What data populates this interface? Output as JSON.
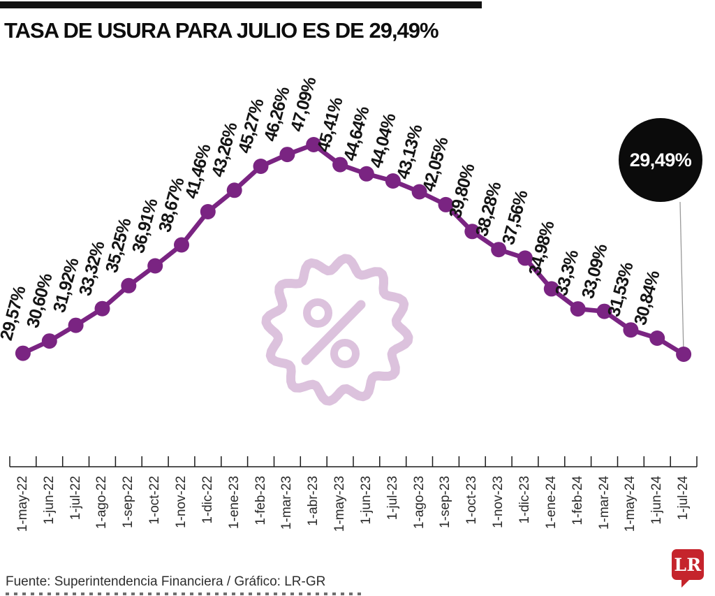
{
  "title": "TASA DE USURA PARA JULIO ES DE 29,49%",
  "callout": {
    "value": "29,49%"
  },
  "footer": {
    "source": "Fuente: Superintendencia Financiera / Gráfico: LR-GR",
    "logo_text": "LR"
  },
  "colors": {
    "series": "#7a2482",
    "callout_bg": "#0b0b0b",
    "watermark": "#dcc2dd",
    "logo_red": "#c5242c",
    "axis": "#1a1a1a",
    "leader_line": "#999999"
  },
  "watermark": {
    "icon": "percent-badge-icon"
  },
  "chart_data": {
    "type": "line",
    "title": "TASA DE USURA PARA JULIO ES DE 29,49%",
    "xlabel": "",
    "ylabel": "",
    "grid": false,
    "legend": "none",
    "ylim": [
      29.49,
      47.09
    ],
    "x": [
      "1-may-22",
      "1-jun-22",
      "1-jul-22",
      "1-ago-22",
      "1-sep-22",
      "1-oct-22",
      "1-nov-22",
      "1-dic-22",
      "1-ene-23",
      "1-feb-23",
      "1-mar-23",
      "1-abr-23",
      "1-may-23",
      "1-jun-23",
      "1-jul-23",
      "1-ago-23",
      "1-sep-23",
      "1-oct-23",
      "1-nov-23",
      "1-dic-23",
      "1-ene-24",
      "1-feb-24",
      "1-mar-24",
      "1-may-24",
      "1-jun-24",
      "1-jul-24"
    ],
    "values": [
      29.57,
      30.6,
      31.92,
      33.32,
      35.25,
      36.91,
      38.67,
      41.46,
      43.26,
      45.27,
      46.26,
      47.09,
      45.41,
      44.64,
      44.04,
      43.13,
      42.05,
      39.8,
      38.28,
      37.56,
      34.98,
      33.3,
      33.09,
      31.53,
      30.84,
      29.49
    ],
    "point_labels": [
      "29,57%",
      "30,60%",
      "31,92%",
      "33,32%",
      "35,25%",
      "36,91%",
      "38,67%",
      "41,46%",
      "43,26%",
      "45,27%",
      "46,26%",
      "47,09%",
      "45,41%",
      "44,64%",
      "44,04%",
      "43,13%",
      "42,05%",
      "39,80%",
      "38,28%",
      "37,56%",
      "34,98%",
      "33,3%",
      "33,09%",
      "31,53%",
      "30,84%",
      "29,49%"
    ],
    "highlighted_last_value": "29,49%"
  }
}
